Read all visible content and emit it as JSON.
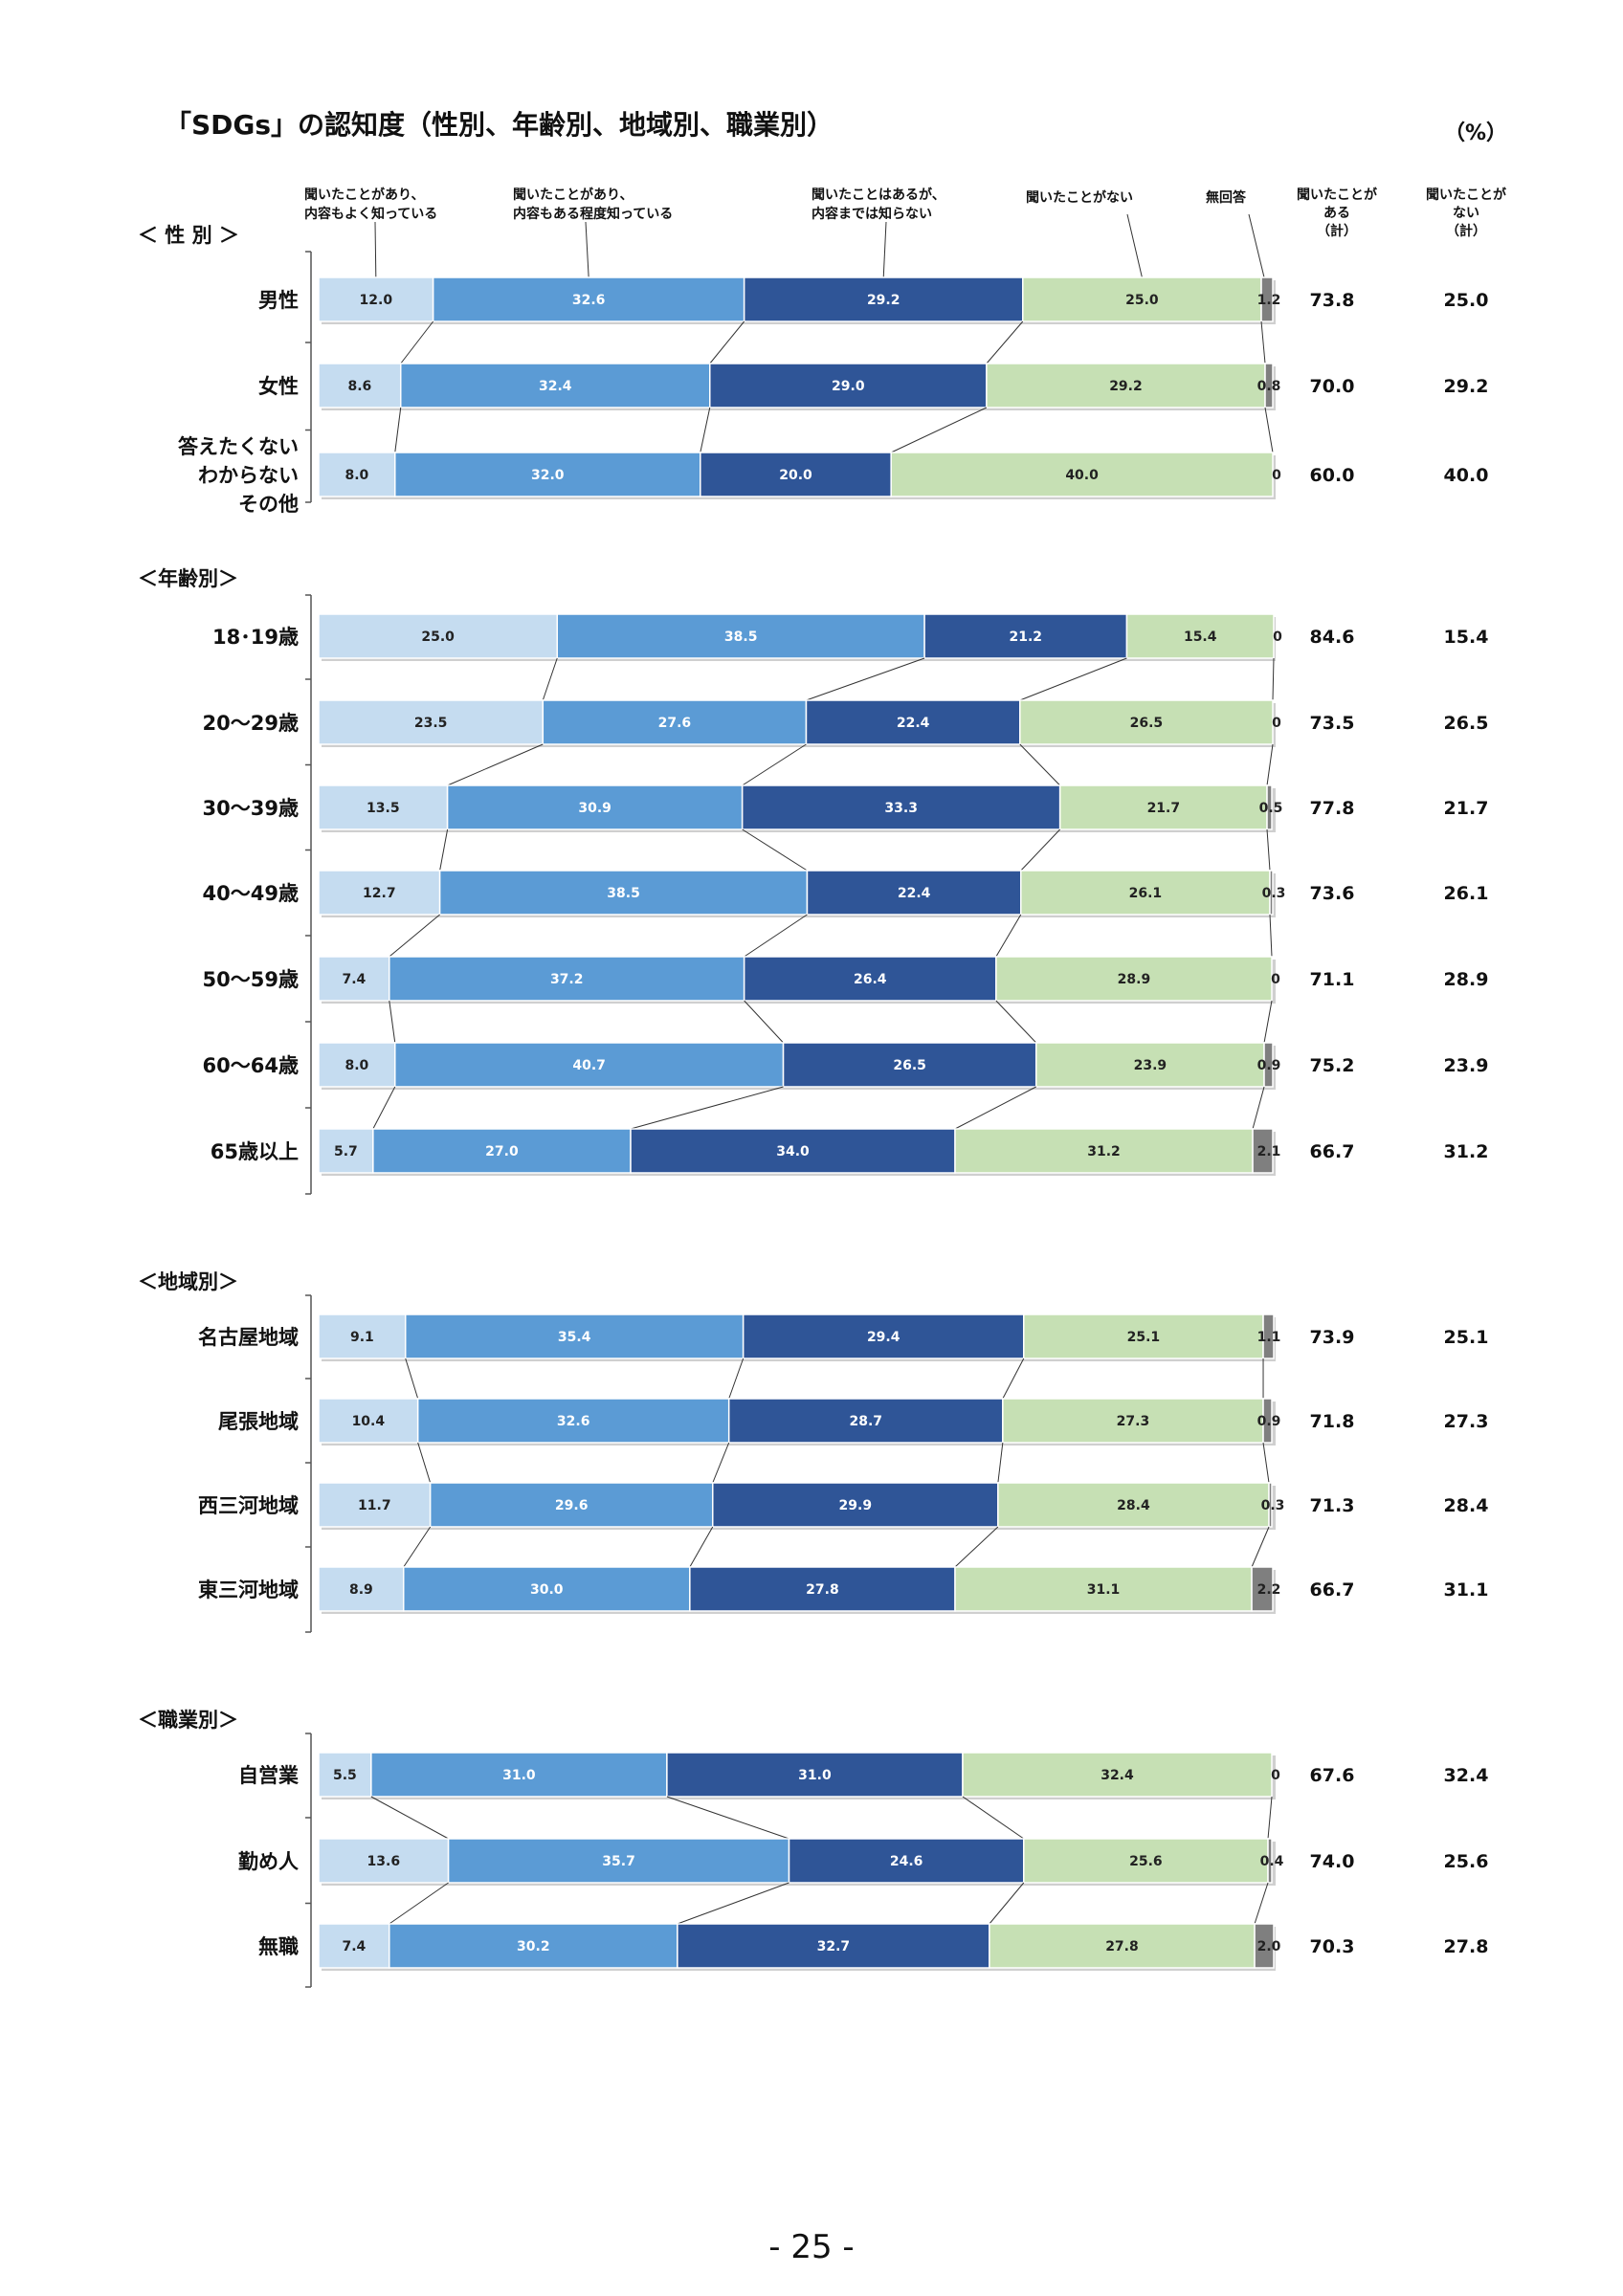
{
  "chart_data": {
    "type": "bar",
    "title": "「SDGs」の認知度（性別、年齢別、地域別、職業別）",
    "unit": "（%）",
    "page_number": "- 25 -",
    "legend": [
      {
        "name": "聞いたことがあり、内容もよく知っている",
        "lines": [
          "聞いたことがあり、",
          "内容もよく知っている"
        ],
        "color": "#c5dcf0"
      },
      {
        "name": "聞いたことがあり、内容もある程度知っている",
        "lines": [
          "聞いたことがあり、",
          "内容もある程度知っている"
        ],
        "color": "#5b9bd5"
      },
      {
        "name": "聞いたことはあるが、内容までは知らない",
        "lines": [
          "聞いたことはあるが、",
          "内容までは知らない"
        ],
        "color": "#2f5597"
      },
      {
        "name": "聞いたことがない",
        "lines": [
          "聞いたことがない"
        ],
        "color": "#c6e0b4"
      },
      {
        "name": "無回答",
        "lines": [
          "無回答"
        ],
        "color": "#7f7f7f"
      }
    ],
    "totals_headers": [
      {
        "lines": [
          "聞いたことが",
          "ある",
          "（計）"
        ]
      },
      {
        "lines": [
          "聞いたことが",
          "ない",
          "（計）"
        ]
      }
    ],
    "groups": [
      {
        "name": "性別",
        "label": "＜ 性 別 ＞",
        "rows": [
          {
            "label": [
              "男性"
            ],
            "values": [
              12.0,
              32.6,
              29.2,
              25.0,
              1.2
            ],
            "labels": [
              "12.0",
              "32.6",
              "29.2",
              "25.0",
              "1.2"
            ],
            "known_total": "73.8",
            "unknown_total": "25.0"
          },
          {
            "label": [
              "女性"
            ],
            "values": [
              8.6,
              32.4,
              29.0,
              29.2,
              0.8
            ],
            "labels": [
              "8.6",
              "32.4",
              "29.0",
              "29.2",
              "0.8"
            ],
            "known_total": "70.0",
            "unknown_total": "29.2"
          },
          {
            "label": [
              "答えたくない",
              "わからない",
              "その他"
            ],
            "values": [
              8.0,
              32.0,
              20.0,
              40.0,
              0
            ],
            "labels": [
              "8.0",
              "32.0",
              "20.0",
              "40.0",
              "0"
            ],
            "known_total": "60.0",
            "unknown_total": "40.0"
          }
        ]
      },
      {
        "name": "年齢別",
        "label": "＜年齢別＞",
        "rows": [
          {
            "label": [
              "18･19歳"
            ],
            "values": [
              25.0,
              38.5,
              21.2,
              15.4,
              0
            ],
            "labels": [
              "25.0",
              "38.5",
              "21.2",
              "15.4",
              "0"
            ],
            "known_total": "84.6",
            "unknown_total": "15.4"
          },
          {
            "label": [
              "20～29歳"
            ],
            "values": [
              23.5,
              27.6,
              22.4,
              26.5,
              0
            ],
            "labels": [
              "23.5",
              "27.6",
              "22.4",
              "26.5",
              "0"
            ],
            "known_total": "73.5",
            "unknown_total": "26.5"
          },
          {
            "label": [
              "30～39歳"
            ],
            "values": [
              13.5,
              30.9,
              33.3,
              21.7,
              0.5
            ],
            "labels": [
              "13.5",
              "30.9",
              "33.3",
              "21.7",
              "0.5"
            ],
            "known_total": "77.8",
            "unknown_total": "21.7"
          },
          {
            "label": [
              "40～49歳"
            ],
            "values": [
              12.7,
              38.5,
              22.4,
              26.1,
              0.3
            ],
            "labels": [
              "12.7",
              "38.5",
              "22.4",
              "26.1",
              "0.3"
            ],
            "known_total": "73.6",
            "unknown_total": "26.1"
          },
          {
            "label": [
              "50～59歳"
            ],
            "values": [
              7.4,
              37.2,
              26.4,
              28.9,
              0
            ],
            "labels": [
              "7.4",
              "37.2",
              "26.4",
              "28.9",
              "0"
            ],
            "known_total": "71.1",
            "unknown_total": "28.9"
          },
          {
            "label": [
              "60～64歳"
            ],
            "values": [
              8.0,
              40.7,
              26.5,
              23.9,
              0.9
            ],
            "labels": [
              "8.0",
              "40.7",
              "26.5",
              "23.9",
              "0.9"
            ],
            "known_total": "75.2",
            "unknown_total": "23.9"
          },
          {
            "label": [
              "65歳以上"
            ],
            "values": [
              5.7,
              27.0,
              34.0,
              31.2,
              2.1
            ],
            "labels": [
              "5.7",
              "27.0",
              "34.0",
              "31.2",
              "2.1"
            ],
            "known_total": "66.7",
            "unknown_total": "31.2"
          }
        ]
      },
      {
        "name": "地域別",
        "label": "＜地域別＞",
        "rows": [
          {
            "label": [
              "名古屋地域"
            ],
            "values": [
              9.1,
              35.4,
              29.4,
              25.1,
              1.1
            ],
            "labels": [
              "9.1",
              "35.4",
              "29.4",
              "25.1",
              "1.1"
            ],
            "known_total": "73.9",
            "unknown_total": "25.1"
          },
          {
            "label": [
              "尾張地域"
            ],
            "values": [
              10.4,
              32.6,
              28.7,
              27.3,
              0.9
            ],
            "labels": [
              "10.4",
              "32.6",
              "28.7",
              "27.3",
              "0.9"
            ],
            "known_total": "71.8",
            "unknown_total": "27.3"
          },
          {
            "label": [
              "西三河地域"
            ],
            "values": [
              11.7,
              29.6,
              29.9,
              28.4,
              0.3
            ],
            "labels": [
              "11.7",
              "29.6",
              "29.9",
              "28.4",
              "0.3"
            ],
            "known_total": "71.3",
            "unknown_total": "28.4"
          },
          {
            "label": [
              "東三河地域"
            ],
            "values": [
              8.9,
              30.0,
              27.8,
              31.1,
              2.2
            ],
            "labels": [
              "8.9",
              "30.0",
              "27.8",
              "31.1",
              "2.2"
            ],
            "known_total": "66.7",
            "unknown_total": "31.1"
          }
        ]
      },
      {
        "name": "職業別",
        "label": "＜職業別＞",
        "rows": [
          {
            "label": [
              "自営業"
            ],
            "values": [
              5.5,
              31.0,
              31.0,
              32.4,
              0
            ],
            "labels": [
              "5.5",
              "31.0",
              "31.0",
              "32.4",
              "0"
            ],
            "known_total": "67.6",
            "unknown_total": "32.4"
          },
          {
            "label": [
              "勤め人"
            ],
            "values": [
              13.6,
              35.7,
              24.6,
              25.6,
              0.4
            ],
            "labels": [
              "13.6",
              "35.7",
              "24.6",
              "25.6",
              "0.4"
            ],
            "known_total": "74.0",
            "unknown_total": "25.6"
          },
          {
            "label": [
              "無職"
            ],
            "values": [
              7.4,
              30.2,
              32.7,
              27.8,
              2.0
            ],
            "labels": [
              "7.4",
              "30.2",
              "32.7",
              "27.8",
              "2.0"
            ],
            "known_total": "70.3",
            "unknown_total": "27.8"
          }
        ]
      }
    ],
    "xlim": [
      0,
      100
    ]
  }
}
